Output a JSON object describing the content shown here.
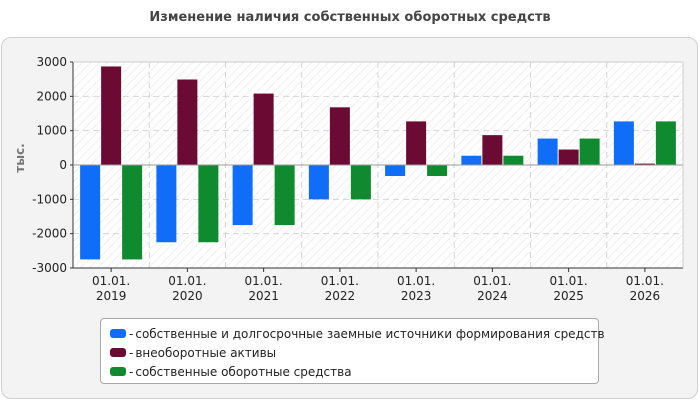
{
  "chart_data": {
    "type": "bar",
    "title": "Изменение наличия собственных оборотных средств",
    "ylabel": "тыс.",
    "xlabel": "",
    "ylim": [
      -3000,
      3000
    ],
    "yticks": [
      -3000,
      -2000,
      -1000,
      0,
      1000,
      2000,
      3000
    ],
    "categories": [
      [
        "01.01.",
        "2019"
      ],
      [
        "01.01.",
        "2020"
      ],
      [
        "01.01.",
        "2021"
      ],
      [
        "01.01.",
        "2022"
      ],
      [
        "01.01.",
        "2023"
      ],
      [
        "01.01.",
        "2024"
      ],
      [
        "01.01.",
        "2025"
      ],
      [
        "01.01.",
        "2026"
      ]
    ],
    "series": [
      {
        "name": "собственные и долгосрочные заемные источники формирования средств",
        "color": "#0f6df7",
        "values": [
          -2750,
          -2250,
          -1750,
          -1000,
          -320,
          270,
          770,
          1270
        ]
      },
      {
        "name": "внеоборотные активы",
        "color": "#6b0a32",
        "values": [
          2870,
          2490,
          2080,
          1680,
          1270,
          870,
          450,
          40
        ]
      },
      {
        "name": "собственные оборотные средства",
        "color": "#0f8a2e",
        "values": [
          -2750,
          -2250,
          -1750,
          -1000,
          -320,
          270,
          770,
          1270
        ]
      }
    ],
    "grid": true,
    "legend_position": "bottom"
  }
}
